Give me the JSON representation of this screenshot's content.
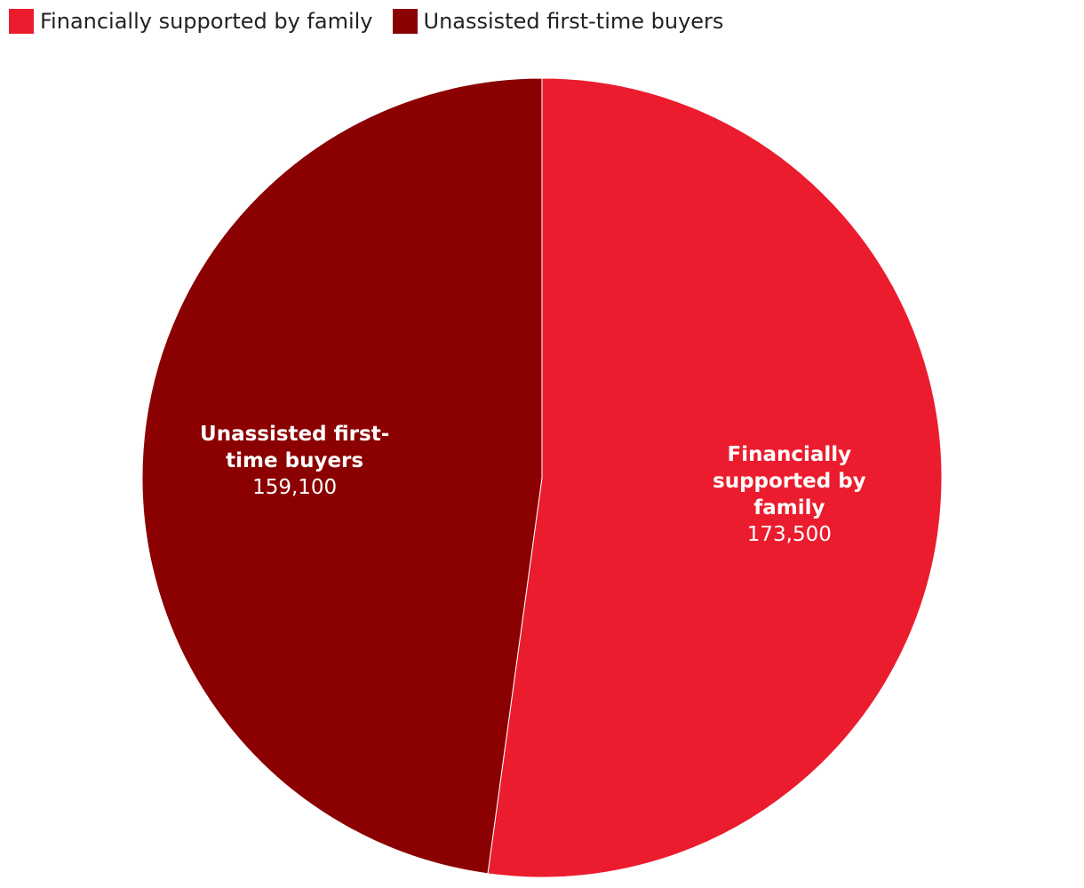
{
  "chart_data": {
    "type": "pie",
    "categories": [
      "Financially supported by family",
      "Unassisted first-time buyers"
    ],
    "values": [
      173500,
      159100
    ],
    "value_labels": [
      "173,500",
      "159,100"
    ],
    "colors": [
      "#eb1c2d",
      "#8b0000"
    ],
    "legend": "top-left"
  }
}
